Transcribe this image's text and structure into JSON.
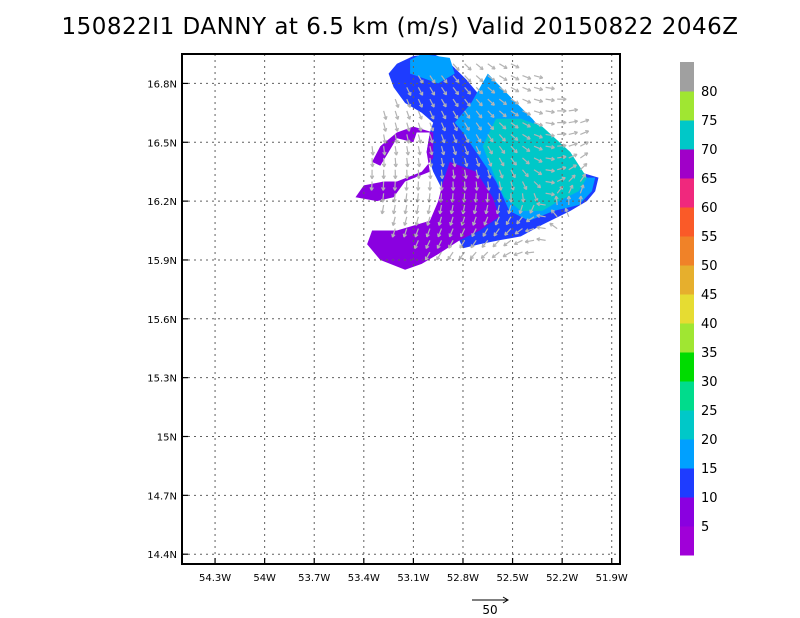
{
  "chart_data": {
    "type": "heatmap",
    "title": "150822I1 DANNY at 6.5 km (m/s) Valid 20150822 2046Z",
    "xlabel": "",
    "ylabel": "",
    "xlim": [
      54.5,
      51.85
    ],
    "ylim": [
      14.35,
      16.95
    ],
    "x_ticks": [
      {
        "value": 54.3,
        "label": "54.3W"
      },
      {
        "value": 54.0,
        "label": "54W"
      },
      {
        "value": 53.7,
        "label": "53.7W"
      },
      {
        "value": 53.4,
        "label": "53.4W"
      },
      {
        "value": 53.1,
        "label": "53.1W"
      },
      {
        "value": 52.8,
        "label": "52.8W"
      },
      {
        "value": 52.5,
        "label": "52.5W"
      },
      {
        "value": 52.2,
        "label": "52.2W"
      },
      {
        "value": 51.9,
        "label": "51.9W"
      }
    ],
    "y_ticks": [
      {
        "value": 14.4,
        "label": "14.4N"
      },
      {
        "value": 14.7,
        "label": "14.7N"
      },
      {
        "value": 15.0,
        "label": "15N"
      },
      {
        "value": 15.3,
        "label": "15.3N"
      },
      {
        "value": 15.6,
        "label": "15.6N"
      },
      {
        "value": 15.9,
        "label": "15.9N"
      },
      {
        "value": 16.2,
        "label": "16.2N"
      },
      {
        "value": 16.5,
        "label": "16.5N"
      },
      {
        "value": 16.8,
        "label": "16.8N"
      }
    ],
    "grid": true,
    "legend": "right",
    "colorbar": [
      {
        "from": 0,
        "to": 5,
        "color": "#a000d8",
        "label": ""
      },
      {
        "from": 5,
        "to": 10,
        "color": "#8a00e0",
        "label": "5"
      },
      {
        "from": 10,
        "to": 15,
        "color": "#1e3cff",
        "label": "10"
      },
      {
        "from": 15,
        "to": 20,
        "color": "#00a0ff",
        "label": "15"
      },
      {
        "from": 20,
        "to": 25,
        "color": "#00c8c8",
        "label": "20"
      },
      {
        "from": 25,
        "to": 30,
        "color": "#00dc8c",
        "label": "25"
      },
      {
        "from": 30,
        "to": 35,
        "color": "#00dc00",
        "label": "30"
      },
      {
        "from": 35,
        "to": 40,
        "color": "#a0e632",
        "label": "35"
      },
      {
        "from": 40,
        "to": 45,
        "color": "#e6dc32",
        "label": "40"
      },
      {
        "from": 45,
        "to": 50,
        "color": "#e6af2d",
        "label": "45"
      },
      {
        "from": 50,
        "to": 55,
        "color": "#f08228",
        "label": "50"
      },
      {
        "from": 55,
        "to": 60,
        "color": "#fa5a28",
        "label": "55"
      },
      {
        "from": 60,
        "to": 65,
        "color": "#f0287d",
        "label": "60"
      },
      {
        "from": 65,
        "to": 70,
        "color": "#a000c8",
        "label": "65"
      },
      {
        "from": 70,
        "to": 75,
        "color": "#00c8c8",
        "label": "70"
      },
      {
        "from": 75,
        "to": 80,
        "color": "#a0e632",
        "label": "75"
      },
      {
        "from": 80,
        "to": 85,
        "color": "#a0a0a0",
        "label": "80"
      }
    ],
    "regions": [
      {
        "name": "cyan-outer",
        "value": 17,
        "color": "#00a0ff",
        "polygon": [
          [
            52.65,
            16.85
          ],
          [
            52.5,
            16.72
          ],
          [
            52.38,
            16.62
          ],
          [
            52.28,
            16.52
          ],
          [
            52.22,
            16.42
          ],
          [
            52.18,
            16.32
          ],
          [
            52.0,
            16.32
          ],
          [
            52.02,
            16.25
          ],
          [
            52.1,
            16.18
          ],
          [
            52.25,
            16.15
          ],
          [
            52.4,
            16.1
          ],
          [
            52.52,
            16.15
          ],
          [
            52.6,
            16.3
          ],
          [
            52.72,
            16.45
          ],
          [
            52.8,
            16.55
          ],
          [
            52.85,
            16.6
          ],
          [
            52.75,
            16.7
          ]
        ]
      },
      {
        "name": "teal-core",
        "value": 22,
        "color": "#00c8c8",
        "polygon": [
          [
            52.6,
            16.62
          ],
          [
            52.45,
            16.62
          ],
          [
            52.32,
            16.58
          ],
          [
            52.15,
            16.45
          ],
          [
            52.05,
            16.32
          ],
          [
            52.1,
            16.25
          ],
          [
            52.22,
            16.2
          ],
          [
            52.32,
            16.15
          ],
          [
            52.45,
            16.15
          ],
          [
            52.55,
            16.22
          ],
          [
            52.62,
            16.35
          ],
          [
            52.68,
            16.48
          ]
        ]
      },
      {
        "name": "top-cyan",
        "value": 17,
        "color": "#00a0ff",
        "polygon": [
          [
            53.05,
            16.95
          ],
          [
            52.88,
            16.93
          ],
          [
            52.85,
            16.85
          ],
          [
            52.95,
            16.8
          ],
          [
            53.12,
            16.85
          ],
          [
            53.12,
            16.92
          ]
        ]
      },
      {
        "name": "purple-south",
        "value": 7,
        "color": "#8a00e0",
        "polygon": [
          [
            52.88,
            16.4
          ],
          [
            52.72,
            16.35
          ],
          [
            52.62,
            16.22
          ],
          [
            52.58,
            16.12
          ],
          [
            52.7,
            16.05
          ],
          [
            52.82,
            16.0
          ],
          [
            52.95,
            15.93
          ],
          [
            53.05,
            15.88
          ],
          [
            53.15,
            15.85
          ],
          [
            53.3,
            15.9
          ],
          [
            53.38,
            15.98
          ],
          [
            53.35,
            16.05
          ],
          [
            53.2,
            16.05
          ],
          [
            53.0,
            16.1
          ],
          [
            52.95,
            16.2
          ],
          [
            52.92,
            16.3
          ]
        ]
      },
      {
        "name": "purple-west",
        "value": 7,
        "color": "#8a00e0",
        "polygon": [
          [
            53.1,
            16.58
          ],
          [
            52.98,
            16.55
          ],
          [
            52.98,
            16.42
          ],
          [
            53.05,
            16.35
          ],
          [
            53.2,
            16.3
          ],
          [
            53.28,
            16.3
          ],
          [
            53.4,
            16.28
          ],
          [
            53.45,
            16.22
          ],
          [
            53.32,
            16.2
          ],
          [
            53.22,
            16.22
          ],
          [
            53.15,
            16.3
          ],
          [
            53.0,
            16.35
          ],
          [
            53.02,
            16.45
          ],
          [
            53.0,
            16.55
          ],
          [
            53.08,
            16.55
          ],
          [
            53.1,
            16.5
          ],
          [
            53.2,
            16.52
          ],
          [
            53.25,
            16.45
          ],
          [
            53.3,
            16.38
          ],
          [
            53.35,
            16.4
          ],
          [
            53.3,
            16.48
          ],
          [
            53.2,
            16.55
          ]
        ]
      }
    ],
    "vector_reference": {
      "value": 50,
      "label": "50"
    }
  }
}
